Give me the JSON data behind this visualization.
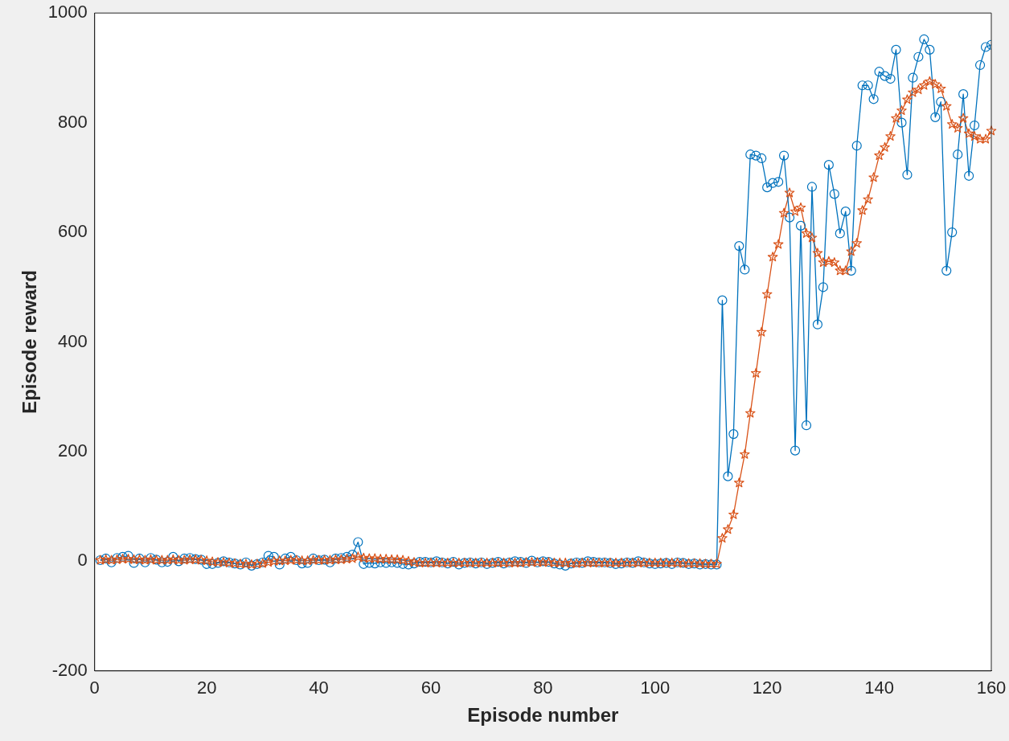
{
  "chart_data": {
    "type": "line",
    "xlabel": "Episode number",
    "ylabel": "Episode reward",
    "x": [
      1,
      2,
      3,
      4,
      5,
      6,
      7,
      8,
      9,
      10,
      11,
      12,
      13,
      14,
      15,
      16,
      17,
      18,
      19,
      20,
      21,
      22,
      23,
      24,
      25,
      26,
      27,
      28,
      29,
      30,
      31,
      32,
      33,
      34,
      35,
      36,
      37,
      38,
      39,
      40,
      41,
      42,
      43,
      44,
      45,
      46,
      47,
      48,
      49,
      50,
      51,
      52,
      53,
      54,
      55,
      56,
      57,
      58,
      59,
      60,
      61,
      62,
      63,
      64,
      65,
      66,
      67,
      68,
      69,
      70,
      71,
      72,
      73,
      74,
      75,
      76,
      77,
      78,
      79,
      80,
      81,
      82,
      83,
      84,
      85,
      86,
      87,
      88,
      89,
      90,
      91,
      92,
      93,
      94,
      95,
      96,
      97,
      98,
      99,
      100,
      101,
      102,
      103,
      104,
      105,
      106,
      107,
      108,
      109,
      110,
      111,
      112,
      113,
      114,
      115,
      116,
      117,
      118,
      119,
      120,
      121,
      122,
      123,
      124,
      125,
      126,
      127,
      128,
      129,
      130,
      131,
      132,
      133,
      134,
      135,
      136,
      137,
      138,
      139,
      140,
      141,
      142,
      143,
      144,
      145,
      146,
      147,
      148,
      149,
      150,
      151,
      152,
      153,
      154,
      155,
      156,
      157,
      158,
      159,
      160
    ],
    "series": [
      {
        "color": "#0072bd",
        "marker": "circle",
        "values": [
          2,
          5,
          -2,
          6,
          8,
          10,
          -3,
          5,
          -2,
          6,
          3,
          -2,
          -1,
          8,
          0,
          5,
          6,
          4,
          3,
          -5,
          -5,
          -3,
          0,
          -2,
          -4,
          -6,
          -2,
          -8,
          -5,
          -2,
          10,
          8,
          -6,
          5,
          8,
          2,
          -4,
          -3,
          5,
          2,
          3,
          -2,
          5,
          6,
          8,
          12,
          35,
          -5,
          -3,
          -4,
          -2,
          -3,
          -2,
          -3,
          -5,
          -6,
          -4,
          -1,
          -1,
          -2,
          0,
          -2,
          -4,
          -1,
          -6,
          -3,
          -2,
          -4,
          -2,
          -5,
          -3,
          -1,
          -4,
          -2,
          0,
          -1,
          -3,
          1,
          -2,
          0,
          -1,
          -4,
          -6,
          -8,
          -4,
          -2,
          -3,
          0,
          -1,
          -2,
          -2,
          -3,
          -5,
          -4,
          -2,
          -3,
          0,
          -2,
          -4,
          -5,
          -4,
          -3,
          -5,
          -2,
          -3,
          -5,
          -4,
          -6,
          -5,
          -6,
          -6,
          476,
          155,
          232,
          575,
          532,
          742,
          740,
          735,
          682,
          690,
          692,
          740,
          627,
          202,
          612,
          248,
          683,
          432,
          500,
          723,
          670,
          598,
          638,
          530,
          758,
          868,
          868,
          843,
          893,
          885,
          880,
          933,
          800,
          705,
          882,
          920,
          952,
          933,
          810,
          838,
          530,
          600,
          742,
          852,
          703,
          795,
          905,
          938,
          942
        ]
      },
      {
        "color": "#d95319",
        "marker": "star",
        "values": [
          2,
          3,
          2,
          3,
          4,
          4,
          3,
          3,
          2,
          3,
          2,
          2,
          2,
          3,
          2,
          2,
          3,
          3,
          2,
          1,
          -1,
          -2,
          -2,
          -3,
          -4,
          -5,
          -5,
          -6,
          -5,
          -4,
          -2,
          0,
          1,
          1,
          2,
          2,
          1,
          1,
          2,
          2,
          2,
          2,
          3,
          3,
          4,
          5,
          8,
          6,
          5,
          5,
          4,
          4,
          3,
          3,
          2,
          0,
          -2,
          -3,
          -3,
          -3,
          -3,
          -3,
          -3,
          -3,
          -3,
          -3,
          -3,
          -3,
          -3,
          -3,
          -3,
          -3,
          -3,
          -3,
          -3,
          -3,
          -2,
          -2,
          -2,
          -2,
          -2,
          -3,
          -3,
          -3,
          -4,
          -4,
          -3,
          -3,
          -3,
          -3,
          -3,
          -3,
          -3,
          -3,
          -3,
          -3,
          -3,
          -3,
          -3,
          -3,
          -3,
          -3,
          -3,
          -3,
          -4,
          -4,
          -4,
          -4,
          -5,
          -5,
          -5,
          42,
          58,
          85,
          143,
          195,
          270,
          343,
          418,
          487,
          555,
          578,
          635,
          672,
          638,
          645,
          598,
          590,
          562,
          545,
          547,
          545,
          530,
          530,
          565,
          580,
          640,
          660,
          700,
          740,
          755,
          775,
          808,
          822,
          842,
          855,
          860,
          868,
          875,
          870,
          862,
          830,
          797,
          790,
          808,
          780,
          775,
          770,
          770,
          785
        ]
      }
    ],
    "xlim": [
      0,
      160
    ],
    "xticks": [
      0,
      20,
      40,
      60,
      80,
      100,
      120,
      140,
      160
    ],
    "ylim": [
      -200,
      1000
    ],
    "yticks": [
      -200,
      0,
      200,
      400,
      600,
      800,
      1000
    ],
    "grid": false,
    "legend": false,
    "line_style": "solid"
  }
}
